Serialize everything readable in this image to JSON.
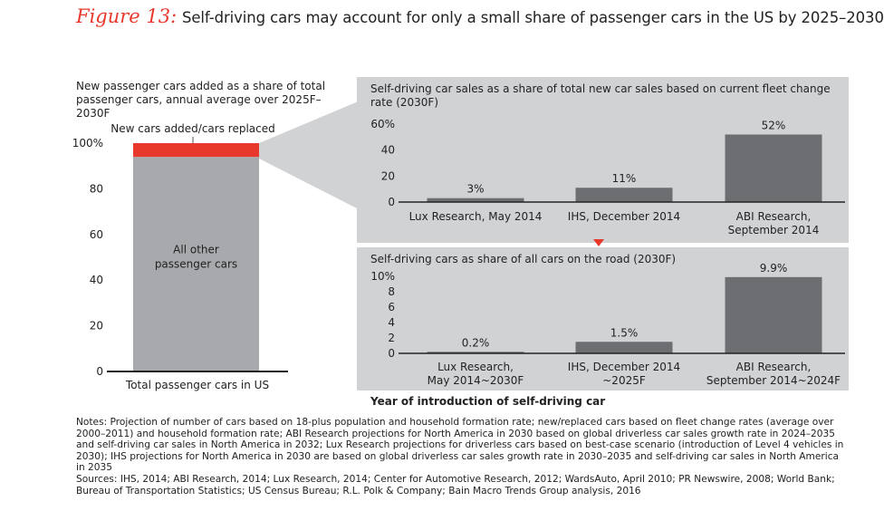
{
  "figure": {
    "label": "Figure 13:",
    "title": "Self-driving cars may account for only a small share of passenger cars in the US by 2025–2030"
  },
  "left_panel": {
    "heading_line1": "New passenger cars added as a share of total",
    "heading_line2": "passenger cars, annual average over 2025F–2030F"
  },
  "top_panel": {
    "title_line1": "Self-driving car sales as a share of total new car sales based on current fleet change",
    "title_line2": "rate (2030F)"
  },
  "bottom_panel": {
    "title": "Self-driving cars as share of all cars on the road (2030F)",
    "axis_title": "Year of introduction of self-driving car"
  },
  "notes": {
    "text": "Notes: Projection of number of cars based on 18-plus population and household formation rate; new/replaced cars based on fleet change rates (average over 2000–2011) and household formation rate; ABI Research projections for North America in 2030 based on global driverless car sales growth rate in 2024–2035 and self-driving car sales in North America in 2032; Lux Research projections for driverless cars based on best-case scenario (introduction of Level 4 vehicles in 2030); IHS projections for North America in 2030 are based on global driverless car sales growth rate in 2030–2035 and self-driving car sales in North America in 2035",
    "sources": "Sources: IHS, 2014; ABI Research, 2014; Lux Research, 2014; Center for Automotive Research, 2012; WardsAuto, April 2010; PR Newswire, 2008; World Bank; Bureau of Transportation Statistics; US Census Bureau; R.L. Polk & Company; Bain Macro Trends Group analysis, 2016"
  },
  "colors": {
    "accent_red": "#e8372b",
    "stack_gray": "#a8a9ac",
    "bar_dark": "#6d6e71",
    "panel_bg": "#d1d2d4"
  },
  "chart_data": [
    {
      "type": "bar",
      "stacked": true,
      "title": "New passenger cars added as a share of total passenger cars, annual average over 2025F–2030F",
      "categories": [
        "Total passenger cars in US"
      ],
      "series": [
        {
          "name": "All other passenger cars",
          "values": [
            94
          ]
        },
        {
          "name": "New cars added/cars replaced",
          "values": [
            6
          ]
        }
      ],
      "segment_labels": [
        "All other",
        "passenger cars"
      ],
      "callout": "New cars added/cars replaced",
      "ylim": [
        0,
        100
      ],
      "yticks": [
        "100%",
        "80",
        "60",
        "40",
        "20",
        "0"
      ]
    },
    {
      "type": "bar",
      "title": "Self-driving car sales as a share of total new car sales based on current fleet change rate (2030F)",
      "categories": [
        "Lux Research, May 2014",
        "IHS, December 2014",
        "ABI Research, September 2014"
      ],
      "category_lines": [
        [
          "Lux Research, May 2014"
        ],
        [
          "IHS, December 2014"
        ],
        [
          "ABI Research,",
          "September 2014"
        ]
      ],
      "values": [
        3,
        11,
        52
      ],
      "value_labels": [
        "3%",
        "11%",
        "52%"
      ],
      "ylim": [
        0,
        60
      ],
      "yticks": [
        "60%",
        "40",
        "20",
        "0"
      ]
    },
    {
      "type": "bar",
      "title": "Self-driving cars as share of all cars on the road (2030F)",
      "categories": [
        "Lux Research, May 2014~2030F",
        "IHS, December 2014 ~2025F",
        "ABI Research, September 2014~2024F"
      ],
      "category_lines": [
        [
          "Lux Research,",
          "May 2014~2030F"
        ],
        [
          "IHS, December 2014",
          "~2025F"
        ],
        [
          "ABI Research,",
          "September 2014~2024F"
        ]
      ],
      "values": [
        0.2,
        1.5,
        9.9
      ],
      "value_labels": [
        "0.2%",
        "1.5%",
        "9.9%"
      ],
      "ylim": [
        0,
        10
      ],
      "yticks": [
        "10%",
        "8",
        "6",
        "4",
        "2",
        "0"
      ],
      "xlabel": "Year of introduction of self-driving car"
    }
  ]
}
